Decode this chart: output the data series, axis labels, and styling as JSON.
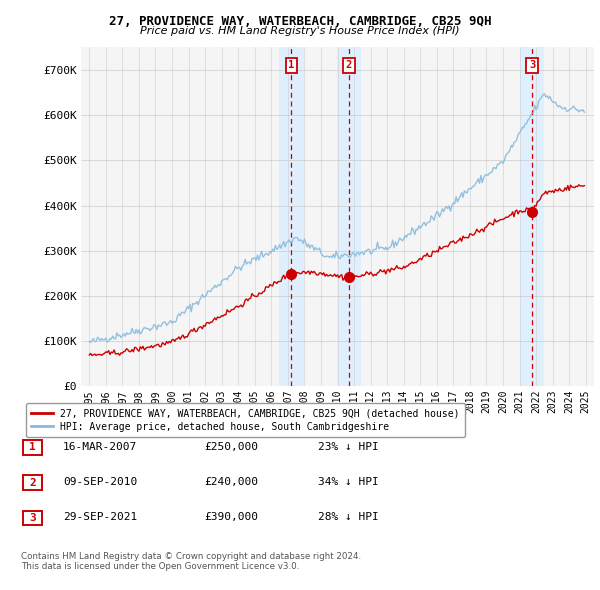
{
  "title1": "27, PROVIDENCE WAY, WATERBEACH, CAMBRIDGE, CB25 9QH",
  "title2": "Price paid vs. HM Land Registry's House Price Index (HPI)",
  "legend_line1": "27, PROVIDENCE WAY, WATERBEACH, CAMBRIDGE, CB25 9QH (detached house)",
  "legend_line2": "HPI: Average price, detached house, South Cambridgeshire",
  "footer": "Contains HM Land Registry data © Crown copyright and database right 2024.\nThis data is licensed under the Open Government Licence v3.0.",
  "sales": [
    {
      "num": 1,
      "date": "16-MAR-2007",
      "price": 250000,
      "pct": "23% ↓ HPI",
      "x": 2007.21
    },
    {
      "num": 2,
      "date": "09-SEP-2010",
      "price": 240000,
      "pct": "34% ↓ HPI",
      "x": 2010.69
    },
    {
      "num": 3,
      "date": "29-SEP-2021",
      "price": 390000,
      "pct": "28% ↓ HPI",
      "x": 2021.75
    }
  ],
  "property_color": "#cc0000",
  "hpi_color": "#88bbdd",
  "sale_marker_color": "#cc0000",
  "shading_color": "#ddeeff",
  "dashed_color": "#cc0000",
  "ylim": [
    0,
    750000
  ],
  "yticks": [
    0,
    100000,
    200000,
    300000,
    400000,
    500000,
    600000,
    700000
  ],
  "ytick_labels": [
    "£0",
    "£100K",
    "£200K",
    "£300K",
    "£400K",
    "£500K",
    "£600K",
    "£700K"
  ],
  "xmin": 1994.5,
  "xmax": 2025.5,
  "background_color": "#ffffff",
  "plot_bg_color": "#f5f5f5"
}
